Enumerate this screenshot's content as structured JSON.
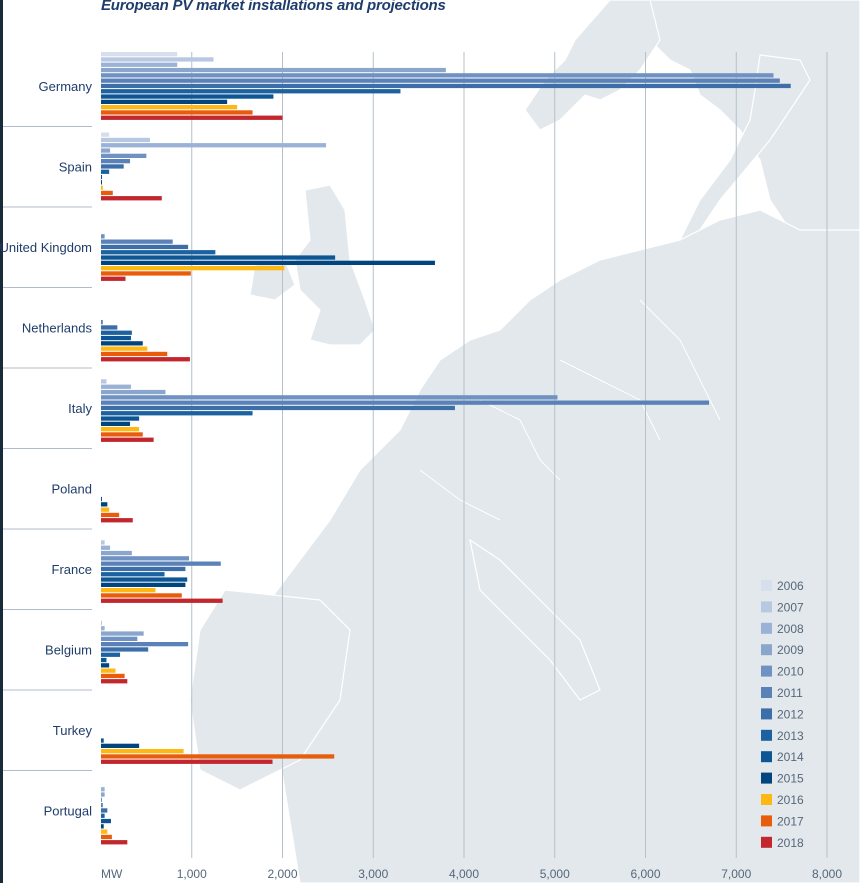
{
  "chart_data": {
    "type": "bar",
    "orientation": "horizontal",
    "title": "European PV market installations and projections",
    "xlabel": "MW",
    "ylabel": "",
    "xlim": [
      0,
      8000
    ],
    "xticks": [
      {
        "value": 0,
        "label": "MW"
      },
      {
        "value": 1000,
        "label": "1,000"
      },
      {
        "value": 2000,
        "label": "2,000"
      },
      {
        "value": 3000,
        "label": "3,000"
      },
      {
        "value": 4000,
        "label": "4,000"
      },
      {
        "value": 5000,
        "label": "5,000"
      },
      {
        "value": 6000,
        "label": "6,000"
      },
      {
        "value": 7000,
        "label": "7,000"
      },
      {
        "value": 8000,
        "label": "8,000"
      }
    ],
    "grid": true,
    "legend_position": "bottom-right",
    "years": [
      "2006",
      "2007",
      "2008",
      "2009",
      "2010",
      "2011",
      "2012",
      "2013",
      "2014",
      "2015",
      "2016",
      "2017",
      "2018"
    ],
    "colors": [
      "#d5dfee",
      "#b8c8e0",
      "#9ab2d5",
      "#8aa6cc",
      "#6f92c2",
      "#5b82b8",
      "#3c6ea8",
      "#1d62a0",
      "#0d5593",
      "#004580",
      "#fdb813",
      "#e85d0c",
      "#c1272d"
    ],
    "categories": [
      "Germany",
      "Spain",
      "United Kingdom",
      "Netherlands",
      "Italy",
      "Poland",
      "France",
      "Belgium",
      "Turkey",
      "Portugal"
    ],
    "values": {
      "Germany": [
        840,
        1240,
        840,
        3800,
        7410,
        7480,
        7600,
        3300,
        1900,
        1390,
        1500,
        1670,
        2000
      ],
      "Spain": [
        90,
        540,
        2480,
        100,
        500,
        320,
        250,
        90,
        5,
        10,
        20,
        130,
        670
      ],
      "United Kingdom": [
        0,
        0,
        0,
        0,
        40,
        790,
        960,
        1260,
        2580,
        3680,
        2020,
        990,
        270
      ],
      "Netherlands": [
        0,
        0,
        0,
        0,
        0,
        20,
        180,
        340,
        330,
        460,
        510,
        730,
        980
      ],
      "Italy": [
        0,
        60,
        330,
        710,
        5030,
        6700,
        3900,
        1670,
        420,
        320,
        420,
        460,
        580
      ],
      "Poland": [
        0,
        0,
        0,
        0,
        0,
        0,
        0,
        0,
        10,
        70,
        90,
        200,
        350
      ],
      "France": [
        0,
        40,
        100,
        340,
        970,
        1320,
        930,
        700,
        950,
        930,
        600,
        890,
        1340
      ],
      "Belgium": [
        0,
        10,
        40,
        470,
        400,
        960,
        520,
        210,
        60,
        90,
        160,
        260,
        290
      ],
      "Turkey": [
        0,
        0,
        0,
        0,
        0,
        0,
        0,
        0,
        30,
        420,
        910,
        2570,
        1890
      ],
      "Portugal": [
        0,
        0,
        40,
        40,
        10,
        20,
        70,
        40,
        110,
        30,
        70,
        120,
        290
      ]
    }
  }
}
